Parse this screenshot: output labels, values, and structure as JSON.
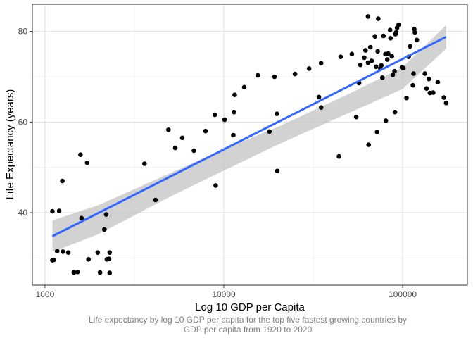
{
  "chart_data": {
    "type": "scatter",
    "title": "",
    "xlabel": "Log 10 GDP per Capita",
    "ylabel": "Life Expectancy (years)",
    "caption_lines": [
      "Life expectancy by log 10 GDP per capita for the top five fastest growing countries by",
      "GDP per capita from 1920 to 2020"
    ],
    "x_scale": "log10",
    "xlim": [
      850,
      230000
    ],
    "ylim": [
      24,
      86
    ],
    "x_ticks": [
      1000,
      10000,
      100000
    ],
    "x_tick_labels": [
      "1000",
      "10000",
      "100000"
    ],
    "y_ticks": [
      40,
      60,
      80
    ],
    "y_tick_labels": [
      "40",
      "60",
      "80"
    ],
    "grid": true,
    "legend": "none",
    "colors": {
      "points": "#000000",
      "fit_line": "#3366ff",
      "ribbon": "#bfbfbf"
    },
    "points": [
      [
        1100,
        40.3
      ],
      [
        1100,
        29.5
      ],
      [
        1120,
        29.6
      ],
      [
        1170,
        31.5
      ],
      [
        1200,
        40.4
      ],
      [
        1250,
        47.0
      ],
      [
        1260,
        31.4
      ],
      [
        1350,
        31.2
      ],
      [
        1450,
        26.8
      ],
      [
        1520,
        26.9
      ],
      [
        1580,
        52.8
      ],
      [
        1600,
        38.8
      ],
      [
        1720,
        51.0
      ],
      [
        1750,
        29.7
      ],
      [
        1970,
        31.2
      ],
      [
        2030,
        26.8
      ],
      [
        2150,
        36.3
      ],
      [
        2200,
        39.6
      ],
      [
        2220,
        29.7
      ],
      [
        2280,
        29.8
      ],
      [
        2300,
        31.2
      ],
      [
        2300,
        26.7
      ],
      [
        3600,
        50.8
      ],
      [
        4150,
        42.8
      ],
      [
        4900,
        58.3
      ],
      [
        5350,
        54.3
      ],
      [
        5850,
        56.5
      ],
      [
        6800,
        53.7
      ],
      [
        7900,
        58.0
      ],
      [
        8900,
        61.6
      ],
      [
        9000,
        46.0
      ],
      [
        10100,
        60.5
      ],
      [
        11300,
        57.1
      ],
      [
        11400,
        62.2
      ],
      [
        11500,
        66.0
      ],
      [
        13000,
        67.7
      ],
      [
        15500,
        70.3
      ],
      [
        18000,
        57.9
      ],
      [
        19200,
        70.0
      ],
      [
        19800,
        61.8
      ],
      [
        19900,
        49.2
      ],
      [
        25000,
        70.6
      ],
      [
        30000,
        71.8
      ],
      [
        34000,
        65.5
      ],
      [
        35000,
        73.0
      ],
      [
        35000,
        63.2
      ],
      [
        44000,
        52.4
      ],
      [
        45000,
        74.4
      ],
      [
        52000,
        75.0
      ],
      [
        55000,
        61.1
      ],
      [
        57000,
        68.6
      ],
      [
        58000,
        72.6
      ],
      [
        61000,
        74.2
      ],
      [
        62000,
        75.8
      ],
      [
        64000,
        83.3
      ],
      [
        64000,
        73.1
      ],
      [
        64500,
        55.0
      ],
      [
        66000,
        76.5
      ],
      [
        67000,
        73.5
      ],
      [
        70000,
        78.9
      ],
      [
        71000,
        72.2
      ],
      [
        72000,
        57.8
      ],
      [
        72500,
        75.6
      ],
      [
        73000,
        82.8
      ],
      [
        75000,
        71.8
      ],
      [
        76000,
        72.5
      ],
      [
        77000,
        69.8
      ],
      [
        78000,
        79.0
      ],
      [
        80000,
        75.0
      ],
      [
        80500,
        60.3
      ],
      [
        82000,
        73.8
      ],
      [
        83000,
        75.1
      ],
      [
        85000,
        80.3
      ],
      [
        85500,
        78.5
      ],
      [
        87000,
        74.5
      ],
      [
        88000,
        70.4
      ],
      [
        90000,
        71.2
      ],
      [
        90500,
        62.2
      ],
      [
        91000,
        79.4
      ],
      [
        92000,
        79.8
      ],
      [
        93000,
        80.8
      ],
      [
        95000,
        81.5
      ],
      [
        99000,
        72.1
      ],
      [
        101000,
        71.9
      ],
      [
        105000,
        65.3
      ],
      [
        108000,
        74.4
      ],
      [
        110000,
        76.7
      ],
      [
        114000,
        68.1
      ],
      [
        115000,
        70.7
      ],
      [
        116000,
        80.5
      ],
      [
        117000,
        79.8
      ],
      [
        120000,
        78.1
      ],
      [
        133000,
        70.7
      ],
      [
        136000,
        67.4
      ],
      [
        140000,
        69.5
      ],
      [
        142000,
        66.4
      ],
      [
        148000,
        66.5
      ],
      [
        157000,
        68.8
      ],
      [
        170000,
        65.4
      ],
      [
        175000,
        64.2
      ]
    ],
    "fit_line": {
      "x": [
        1100,
        175000
      ],
      "y": [
        34.8,
        78.8
      ]
    },
    "ribbon": {
      "x": [
        1100,
        2000,
        5000,
        10000,
        20000,
        50000,
        100000,
        175000
      ],
      "lower": [
        31.3,
        35.3,
        43.5,
        49.3,
        55.0,
        62.0,
        67.3,
        76.2
      ],
      "upper": [
        38.3,
        41.7,
        48.7,
        54.0,
        58.9,
        66.2,
        72.1,
        81.4
      ]
    }
  }
}
